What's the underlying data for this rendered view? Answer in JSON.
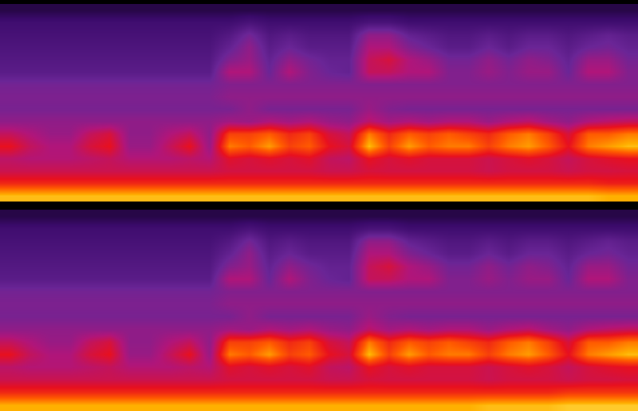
{
  "chart_data": [
    {
      "type": "heatmap",
      "tick_labels": false,
      "zlim": [
        0,
        10
      ],
      "cells": [
        [
          9,
          9,
          9,
          9,
          9,
          9,
          9,
          9,
          9,
          9,
          9,
          9,
          9,
          9,
          9,
          9,
          9,
          9,
          9,
          9,
          9,
          9,
          9,
          9,
          9,
          9,
          9,
          9,
          9,
          9,
          8.8,
          8.8
        ],
        [
          6.5,
          6.5,
          6.5,
          6.5,
          6.5,
          6.5,
          6.5,
          6.5,
          6.5,
          6.5,
          6.5,
          6.5,
          6.5,
          6.5,
          6.5,
          6.5,
          6.5,
          6.5,
          6.5,
          6.5,
          6.5,
          6.5,
          6.5,
          6.5,
          6.5,
          6.5,
          6.5,
          6.5,
          6.5,
          6.5,
          6.3,
          6.3
        ],
        [
          5.2,
          5.2,
          5.2,
          5.2,
          5.2,
          5.2,
          5.2,
          5.2,
          5.2,
          5.2,
          5.2,
          5.4,
          5.4,
          5.4,
          5.4,
          5.4,
          5.2,
          5.2,
          5.5,
          5.4,
          5.4,
          5.4,
          5.4,
          5.4,
          5.2,
          5.4,
          5.4,
          5.4,
          5.2,
          5.4,
          5.4,
          5.5
        ],
        [
          4.8,
          4.6,
          4.6,
          4.6,
          4.8,
          5,
          4.6,
          4.6,
          4.6,
          4.8,
          4.6,
          5.8,
          5.5,
          5.8,
          5.5,
          5.8,
          5,
          4.8,
          6,
          5.5,
          5.8,
          5.5,
          5.5,
          5.5,
          5.2,
          5.5,
          5.8,
          5.5,
          5,
          5.5,
          5.8,
          6
        ],
        [
          6,
          5,
          4.5,
          4.5,
          5.5,
          6,
          4,
          4,
          5,
          6,
          4,
          8,
          7.5,
          8.5,
          7,
          7.5,
          6,
          5.5,
          9,
          7,
          8.5,
          7.5,
          8,
          8,
          7,
          8,
          8.5,
          7.5,
          6,
          8,
          8.5,
          9
        ],
        [
          5,
          4.5,
          4,
          4,
          5,
          5.5,
          3.8,
          3.8,
          4.5,
          5,
          3.8,
          7,
          7,
          7.5,
          6.5,
          7,
          5.5,
          5,
          8,
          6.5,
          7.5,
          7,
          7.5,
          7,
          6.5,
          7.5,
          8,
          7,
          5.5,
          7.5,
          7.5,
          8
        ],
        [
          3.8,
          3.8,
          3.8,
          3.8,
          3.8,
          3.8,
          3.8,
          3.8,
          3.8,
          3.8,
          3.8,
          4.2,
          4,
          4.5,
          4.2,
          4.5,
          4,
          3.8,
          4.8,
          4.2,
          4.5,
          4.2,
          4.5,
          4.5,
          4,
          4.5,
          4.8,
          4.2,
          3.8,
          4.5,
          4.8,
          5
        ],
        [
          3.3,
          3.3,
          3.3,
          3.3,
          3.3,
          3.3,
          3.3,
          3.3,
          3.3,
          3.3,
          3.3,
          3.3,
          3.8,
          3.3,
          3.3,
          3.3,
          3.3,
          3.3,
          4,
          3.5,
          3.3,
          3.3,
          3.3,
          3.3,
          3.3,
          3.3,
          3.3,
          3.3,
          3.3,
          3.3,
          3.3,
          3.3
        ],
        [
          3.4,
          3.4,
          3.4,
          3.4,
          3.4,
          3.4,
          3.4,
          3.4,
          3.4,
          3.4,
          3.4,
          3.8,
          3.8,
          3.8,
          3.8,
          3.8,
          3.8,
          3.8,
          3.8,
          3.8,
          3.8,
          3.8,
          3.8,
          3.8,
          3.8,
          3.8,
          3.8,
          3.8,
          3.8,
          3.8,
          3.8,
          3.8
        ],
        [
          3.2,
          3.2,
          3.2,
          3.2,
          3.2,
          3.2,
          3.2,
          3.2,
          3.2,
          3.2,
          3.2,
          3.5,
          3.5,
          3.5,
          3.5,
          3.5,
          3.5,
          3.5,
          3.5,
          3.5,
          3.5,
          3.5,
          3.5,
          3.5,
          3.5,
          3.5,
          3.5,
          3.5,
          3.5,
          3.5,
          3.5,
          3.5
        ],
        [
          2.5,
          2.5,
          2.5,
          2.5,
          2.5,
          2.5,
          2.5,
          2.5,
          2.5,
          2.5,
          2.5,
          4.5,
          4.5,
          3,
          4.5,
          3.5,
          3,
          2.8,
          5,
          5,
          4.5,
          4.5,
          3.5,
          3.5,
          4,
          3.5,
          4,
          4,
          3,
          4.5,
          4.5,
          3.5
        ],
        [
          2.3,
          2.3,
          2.3,
          2.3,
          2.3,
          2.3,
          2.3,
          2.3,
          2.3,
          2.3,
          2.3,
          3.5,
          4,
          2.8,
          3.8,
          3.2,
          2.8,
          2.8,
          5,
          5.5,
          4.5,
          4,
          3.2,
          3.2,
          3.8,
          3.2,
          3.8,
          3.5,
          2.8,
          4,
          4,
          3.2
        ],
        [
          2.1,
          2.1,
          2.1,
          2.1,
          2.1,
          2.1,
          2.1,
          2.1,
          2.1,
          2.1,
          2.1,
          2.8,
          3.8,
          2.5,
          3,
          2.5,
          2.5,
          2.5,
          4.5,
          4.5,
          3.5,
          3,
          2.5,
          2.5,
          3,
          2.5,
          3,
          3,
          2.5,
          3,
          3.2,
          2.8
        ],
        [
          1.9,
          1.9,
          1.9,
          1.9,
          1.9,
          1.9,
          1.9,
          1.9,
          1.9,
          1.9,
          1.9,
          2.3,
          3.2,
          2.2,
          2.5,
          2.2,
          2.2,
          2.2,
          3.8,
          3.8,
          2.8,
          2.5,
          2.2,
          2.2,
          2.5,
          2.2,
          2.5,
          2.5,
          2.2,
          2.5,
          2.8,
          2.5
        ],
        [
          1.7,
          1.7,
          1.7,
          1.7,
          1.7,
          1.7,
          1.7,
          1.7,
          1.7,
          1.7,
          1.7,
          1.7,
          2,
          1.7,
          1.7,
          1.7,
          1.7,
          1.7,
          2,
          2,
          1.7,
          1.7,
          1.7,
          1.7,
          1.7,
          1.7,
          1.7,
          1.7,
          1.7,
          1.7,
          1.7,
          1.7
        ],
        [
          1,
          1,
          1,
          1,
          1,
          1,
          1,
          1,
          1,
          1,
          1,
          1,
          1,
          1,
          1,
          1,
          1,
          1,
          1,
          1,
          1,
          1,
          1,
          1,
          1,
          1,
          1,
          1,
          1,
          1,
          1,
          1
        ]
      ]
    },
    {
      "type": "heatmap",
      "tick_labels": false,
      "zlim": [
        0,
        10
      ],
      "cells": [
        [
          8.8,
          8.8,
          8.8,
          8.8,
          8.8,
          8.8,
          8.8,
          8.8,
          8.8,
          8.8,
          8.8,
          8.8,
          8.8,
          8.8,
          8.8,
          8.8,
          8.8,
          8.8,
          8.8,
          8.8,
          8.8,
          8.8,
          8.8,
          8.8,
          9,
          9,
          9,
          9,
          9.2,
          9.2,
          9.2,
          9.2
        ],
        [
          6.5,
          6.5,
          6.5,
          6.5,
          6.5,
          6.5,
          6.5,
          6.5,
          6.5,
          6.5,
          6.5,
          6.5,
          6.5,
          6.5,
          6.5,
          6.5,
          6.5,
          6.5,
          6.5,
          6.5,
          6.5,
          6.5,
          6.5,
          6.5,
          6.5,
          6.5,
          6.5,
          6.5,
          6.8,
          6.8,
          6.8,
          6.8
        ],
        [
          5.2,
          5.2,
          5.2,
          5.2,
          5.2,
          5.2,
          5.2,
          5.2,
          5.2,
          5.2,
          5.2,
          5.4,
          5.4,
          5.4,
          5.4,
          5.4,
          5.2,
          5.2,
          5.5,
          5.4,
          5.4,
          5.4,
          5.4,
          5.4,
          5.2,
          5.4,
          5.4,
          5.4,
          5.2,
          5.4,
          5.4,
          5.5
        ],
        [
          4.8,
          4.6,
          4.6,
          4.6,
          4.8,
          5,
          4.6,
          4.6,
          4.6,
          4.8,
          4.6,
          5.8,
          5.5,
          5.8,
          5.5,
          5.8,
          5,
          4.8,
          6,
          5.5,
          5.8,
          5.5,
          5.5,
          5.5,
          5.2,
          5.5,
          5.8,
          5.5,
          5,
          5.5,
          5.8,
          6
        ],
        [
          6,
          5,
          4.5,
          4.5,
          5.5,
          6,
          4,
          4,
          5,
          6,
          4,
          8,
          7.5,
          8.5,
          7,
          7.5,
          6,
          5.5,
          9,
          7,
          8.5,
          7.5,
          8,
          8,
          7,
          8,
          8.5,
          7.5,
          6,
          8,
          8.5,
          9
        ],
        [
          5,
          4.5,
          4,
          4,
          5,
          5.5,
          3.8,
          3.8,
          4.5,
          5,
          3.8,
          7,
          7,
          7.5,
          6.5,
          7,
          5.5,
          5,
          8,
          6.5,
          7.5,
          7,
          7.5,
          7,
          6.5,
          7.5,
          8,
          7,
          5.5,
          7.5,
          7.5,
          8
        ],
        [
          3.8,
          3.8,
          3.8,
          3.8,
          3.8,
          3.8,
          3.8,
          3.8,
          3.8,
          3.8,
          3.8,
          4.2,
          4,
          4.5,
          4.2,
          4.5,
          4,
          3.8,
          4.8,
          4.2,
          4.5,
          4.2,
          4.5,
          4.5,
          4,
          4.5,
          4.8,
          4.2,
          3.8,
          4.5,
          4.8,
          5
        ],
        [
          3.3,
          3.3,
          3.3,
          3.3,
          3.3,
          3.3,
          3.3,
          3.3,
          3.3,
          3.3,
          3.3,
          3.3,
          3.8,
          3.3,
          3.3,
          3.3,
          3.3,
          3.3,
          4,
          3.5,
          3.3,
          3.3,
          3.3,
          3.3,
          3.3,
          3.3,
          3.3,
          3.3,
          3.3,
          3.3,
          3.3,
          3.3
        ],
        [
          3.4,
          3.4,
          3.4,
          3.4,
          3.4,
          3.4,
          3.4,
          3.4,
          3.4,
          3.4,
          3.4,
          3.8,
          3.8,
          3.8,
          3.8,
          3.8,
          3.8,
          3.8,
          3.8,
          3.8,
          3.8,
          3.8,
          3.8,
          3.8,
          3.8,
          3.8,
          3.8,
          3.8,
          3.8,
          3.8,
          3.8,
          3.8
        ],
        [
          3.2,
          3.2,
          3.2,
          3.2,
          3.2,
          3.2,
          3.2,
          3.2,
          3.2,
          3.2,
          3.2,
          3.5,
          3.5,
          3.5,
          3.5,
          3.5,
          3.5,
          3.5,
          3.5,
          3.5,
          3.5,
          3.5,
          3.5,
          3.5,
          3.5,
          3.5,
          3.5,
          3.5,
          3.5,
          3.5,
          3.5,
          3.5
        ],
        [
          2.5,
          2.5,
          2.5,
          2.5,
          2.5,
          2.5,
          2.5,
          2.5,
          2.5,
          2.5,
          2.5,
          4.5,
          4.5,
          3,
          4.5,
          3.5,
          3,
          2.8,
          5,
          5,
          4.5,
          4.5,
          3.5,
          3.5,
          4,
          3.5,
          4,
          4,
          3,
          4.5,
          4.5,
          3.5
        ],
        [
          2.3,
          2.3,
          2.3,
          2.3,
          2.3,
          2.3,
          2.3,
          2.3,
          2.3,
          2.3,
          2.3,
          3.5,
          4,
          2.8,
          3.8,
          3.2,
          2.8,
          2.8,
          5,
          5.5,
          4.5,
          4,
          3.2,
          3.2,
          3.8,
          3.2,
          3.8,
          3.5,
          2.8,
          4,
          4,
          3.2
        ],
        [
          2.1,
          2.1,
          2.1,
          2.1,
          2.1,
          2.1,
          2.1,
          2.1,
          2.1,
          2.1,
          2.1,
          2.8,
          3.8,
          2.5,
          3,
          2.5,
          2.5,
          2.5,
          4.5,
          4.5,
          3.5,
          3,
          2.5,
          2.5,
          3,
          2.5,
          3,
          3,
          2.5,
          3,
          3.2,
          2.8
        ],
        [
          1.9,
          1.9,
          1.9,
          1.9,
          1.9,
          1.9,
          1.9,
          1.9,
          1.9,
          1.9,
          1.9,
          2.3,
          3.2,
          2.2,
          2.5,
          2.2,
          2.2,
          2.2,
          3.8,
          3.8,
          2.8,
          2.5,
          2.2,
          2.2,
          2.5,
          2.2,
          2.5,
          2.5,
          2.2,
          2.5,
          2.8,
          2.5
        ],
        [
          1.7,
          1.7,
          1.7,
          1.7,
          1.7,
          1.7,
          1.7,
          1.7,
          1.7,
          1.7,
          1.7,
          1.7,
          2,
          1.7,
          1.7,
          1.7,
          1.7,
          1.7,
          2,
          2,
          1.7,
          1.7,
          1.7,
          1.7,
          1.7,
          1.7,
          1.7,
          1.7,
          1.7,
          1.7,
          1.7,
          1.7
        ],
        [
          1,
          1,
          1,
          1,
          1,
          1,
          1,
          1,
          1,
          1,
          1,
          1,
          1,
          1,
          1,
          1,
          1,
          1,
          1,
          1,
          1,
          1,
          1,
          1,
          1,
          1,
          1,
          1,
          1,
          1,
          1,
          1
        ]
      ]
    }
  ]
}
